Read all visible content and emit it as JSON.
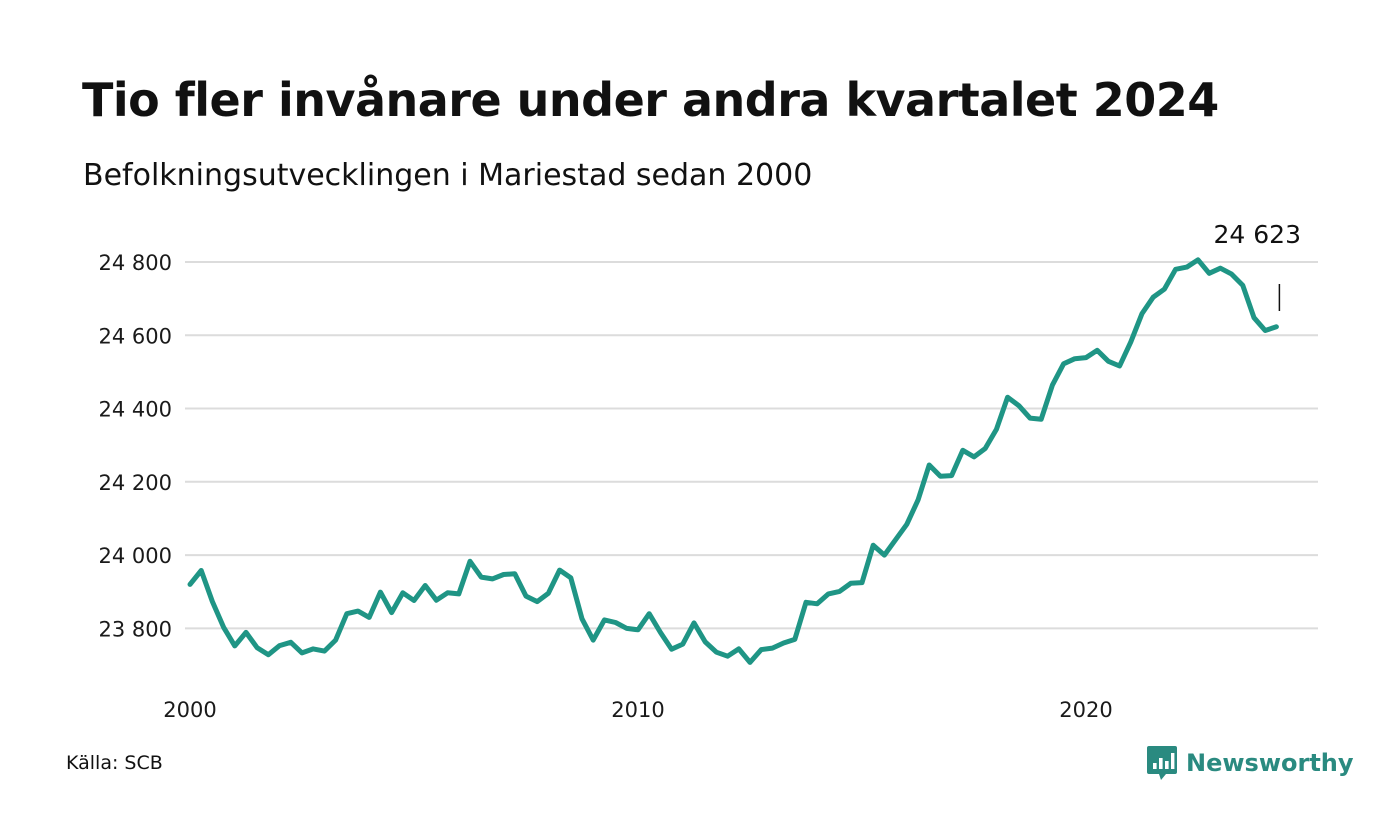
{
  "title": "Tio fler invånare under andra kvartalet 2024",
  "subtitle": "Befolkningsutvecklingen i Mariestad sedan 2000",
  "source": "Källa: SCB",
  "brand": {
    "name": "Newsworthy",
    "icon": "newsworthy-logo-icon",
    "color": "#2a8a80"
  },
  "colors": {
    "line": "#1f9585",
    "grid": "#dcdcdc",
    "text": "#111111"
  },
  "chart_data": {
    "type": "line",
    "title": "Tio fler invånare under andra kvartalet 2024",
    "subtitle": "Befolkningsutvecklingen i Mariestad sedan 2000",
    "xlabel": "",
    "ylabel": "",
    "xlim": [
      2000,
      2025.75
    ],
    "ylim": [
      23700,
      24860
    ],
    "grid": "horizontal",
    "legend": "none",
    "x_ticks": [
      {
        "value": 2000,
        "label": "2000"
      },
      {
        "value": 2010,
        "label": "2010"
      },
      {
        "value": 2020,
        "label": "2020"
      }
    ],
    "y_ticks": [
      {
        "value": 23800,
        "label": "23 800"
      },
      {
        "value": 24000,
        "label": "24 000"
      },
      {
        "value": 24200,
        "label": "24 200"
      },
      {
        "value": 24400,
        "label": "24 400"
      },
      {
        "value": 24600,
        "label": "24 600"
      },
      {
        "value": 24800,
        "label": "24 800"
      }
    ],
    "annotation": {
      "x": 2024.25,
      "y": 24623,
      "label": "24 623"
    },
    "series": [
      {
        "x": [
          2000.0,
          2000.25,
          2000.5,
          2000.75,
          2001.0,
          2001.25,
          2001.5,
          2001.75,
          2002.0,
          2002.25,
          2002.5,
          2002.75,
          2003.0,
          2003.25,
          2003.5,
          2003.75,
          2004.0,
          2004.25,
          2004.5,
          2004.75,
          2005.0,
          2005.25,
          2005.5,
          2005.75,
          2006.0,
          2006.25,
          2006.5,
          2006.75,
          2007.0,
          2007.25,
          2007.5,
          2007.75,
          2008.0,
          2008.25,
          2008.5,
          2008.75,
          2009.0,
          2009.25,
          2009.5,
          2009.75,
          2010.0,
          2010.25,
          2010.5,
          2010.75,
          2011.0,
          2011.25,
          2011.5,
          2011.75,
          2012.0,
          2012.25,
          2012.5,
          2012.75,
          2013.0,
          2013.25,
          2013.5,
          2013.75,
          2014.0,
          2014.25,
          2014.5,
          2014.75,
          2015.0,
          2015.25,
          2015.5,
          2015.75,
          2016.0,
          2016.25,
          2016.5,
          2016.75,
          2017.0,
          2017.25,
          2017.5,
          2017.75,
          2018.0,
          2018.25,
          2018.5,
          2018.75,
          2019.0,
          2019.25,
          2019.5,
          2019.75,
          2020.0,
          2020.25,
          2020.5,
          2020.75,
          2021.0,
          2021.25,
          2021.5,
          2021.75,
          2022.0,
          2022.25,
          2022.5,
          2022.75,
          2023.0,
          2023.25,
          2023.5,
          2023.75,
          2024.0,
          2024.25
        ],
        "values": [
          23920,
          23958,
          23873,
          23803,
          23752,
          23789,
          23747,
          23728,
          23753,
          23762,
          23733,
          23744,
          23738,
          23768,
          23840,
          23847,
          23830,
          23899,
          23843,
          23897,
          23876,
          23917,
          23877,
          23897,
          23894,
          23983,
          23940,
          23935,
          23947,
          23949,
          23888,
          23873,
          23896,
          23959,
          23938,
          23826,
          23768,
          23823,
          23816,
          23800,
          23796,
          23840,
          23789,
          23743,
          23757,
          23815,
          23763,
          23735,
          23724,
          23744,
          23707,
          23742,
          23746,
          23760,
          23770,
          23871,
          23867,
          23894,
          23901,
          23923,
          23925,
          24027,
          24000,
          24042,
          24084,
          24150,
          24246,
          24215,
          24217,
          24286,
          24268,
          24291,
          24343,
          24431,
          24408,
          24374,
          24371,
          24464,
          24522,
          24536,
          24539,
          24559,
          24529,
          24516,
          24582,
          24659,
          24704,
          24726,
          24780,
          24786,
          24806,
          24769,
          24783,
          24767,
          24736,
          24648,
          24613,
          24623
        ]
      }
    ]
  }
}
